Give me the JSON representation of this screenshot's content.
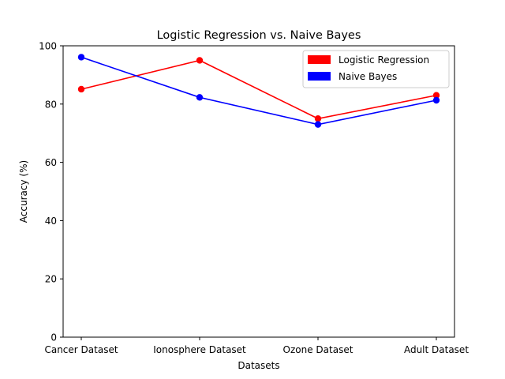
{
  "chart_data": {
    "type": "line",
    "title": "Logistic Regression vs. Naive Bayes",
    "xlabel": "Datasets",
    "ylabel": "Accuracy (%)",
    "categories": [
      "Cancer Dataset",
      "Ionosphere Dataset",
      "Ozone Dataset",
      "Adult Dataset"
    ],
    "ylim": [
      0,
      100
    ],
    "yticks": [
      0,
      20,
      40,
      60,
      80,
      100
    ],
    "grid": false,
    "legend_position": "top-right",
    "series": [
      {
        "name": "Logistic Regression",
        "color": "#ff0000",
        "values": [
          85.1,
          95.0,
          75.0,
          83.0
        ]
      },
      {
        "name": "Naive Bayes",
        "color": "#0000ff",
        "values": [
          96.1,
          82.3,
          73.0,
          81.3
        ]
      }
    ]
  }
}
